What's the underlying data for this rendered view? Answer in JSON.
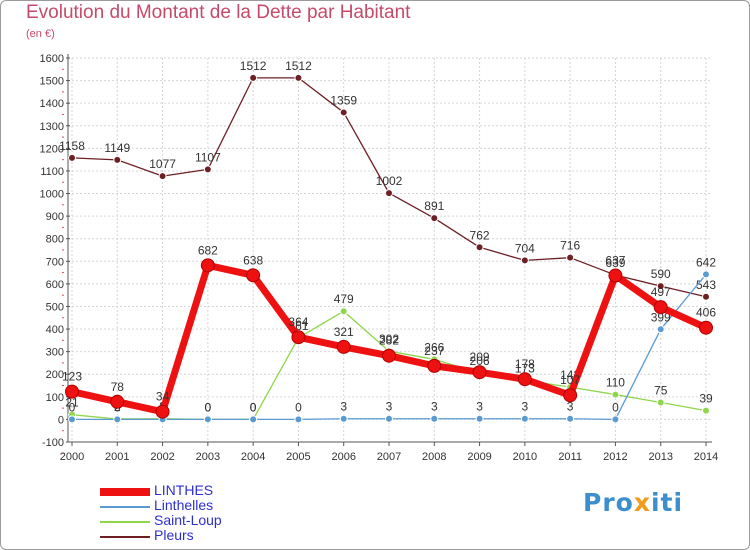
{
  "chart_data": {
    "type": "line",
    "title": "Evolution du Montant de la Dette par Habitant",
    "subtitle": "(en €)",
    "x": [
      2000,
      2001,
      2002,
      2003,
      2004,
      2005,
      2006,
      2007,
      2008,
      2009,
      2010,
      2011,
      2012,
      2013,
      2014
    ],
    "ylim": [
      -100,
      1600
    ],
    "yticks": [
      -100,
      0,
      100,
      200,
      300,
      400,
      500,
      600,
      700,
      800,
      900,
      1000,
      1100,
      1200,
      1300,
      1400,
      1500,
      1600
    ],
    "grid": true,
    "legend_position": "bottom-left",
    "series": [
      {
        "name": "Pleurs",
        "color": "#6e1f24",
        "values": [
          1158,
          1149,
          1077,
          1107,
          1512,
          1512,
          1359,
          1002,
          891,
          762,
          704,
          716,
          639,
          590,
          543
        ]
      },
      {
        "name": "Saint-Loup",
        "color": "#8ed64a",
        "values": [
          21,
          2,
          3,
          0,
          0,
          361,
          479,
          302,
          266,
          206,
          173,
          143,
          110,
          75,
          39
        ]
      },
      {
        "name": "Linthelles",
        "color": "#5a9ad2",
        "values": [
          0,
          0,
          0,
          0,
          0,
          0,
          3,
          3,
          3,
          3,
          3,
          3,
          0,
          399,
          642
        ]
      },
      {
        "name": "LINTHES",
        "color": "#ee1111",
        "values": [
          123,
          78,
          34,
          682,
          638,
          364,
          321,
          282,
          237,
          209,
          178,
          107,
          637,
          497,
          406
        ]
      }
    ],
    "legend": [
      "LINTHES",
      "Linthelles",
      "Saint-Loup",
      "Pleurs"
    ]
  },
  "branding": {
    "logo_text_a": "Pro",
    "logo_text_b": "x",
    "logo_text_c": "iti"
  }
}
